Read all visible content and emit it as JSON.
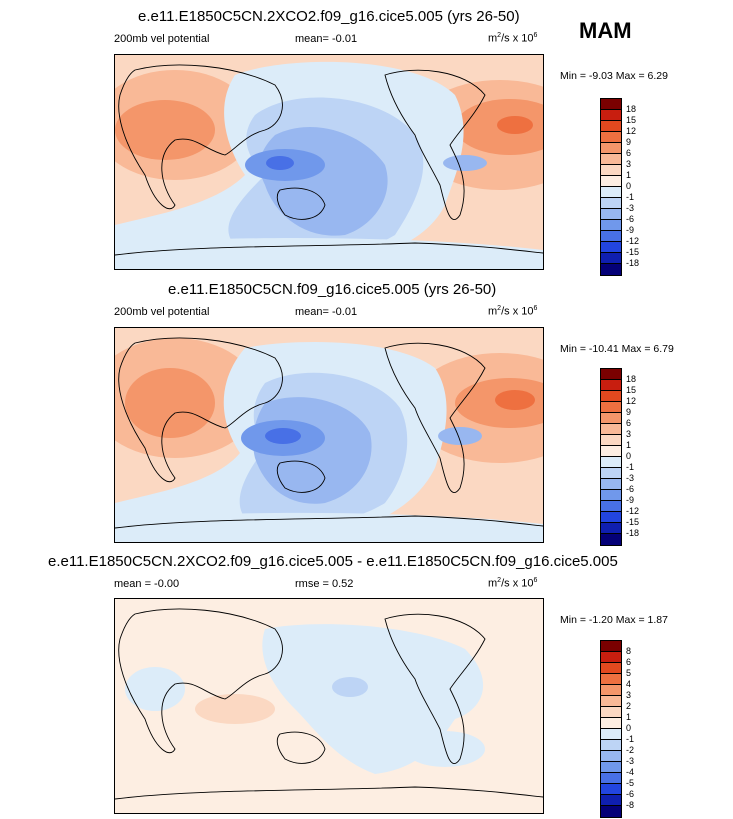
{
  "season": "MAM",
  "panels": [
    {
      "title": "e.e11.E1850C5CN.2XCO2.f09_g16.cice5.005 (yrs 26-50)",
      "field": "200mb vel potential",
      "mean_label": "mean=  -0.01",
      "units_base": "m",
      "units_sup": "2",
      "units_mid": "/s x 10",
      "units_exp": "6",
      "minmax": "Min =  -9.03 Max =  6.29",
      "colorbar": {
        "colors": [
          "#7a0000",
          "#c81e0f",
          "#e3491f",
          "#ee7040",
          "#f4966a",
          "#f9b997",
          "#fbd8c2",
          "#fdeee2",
          "#dcecf9",
          "#bdd4f5",
          "#98b7f0",
          "#7098eb",
          "#4870e6",
          "#2245e0",
          "#0f1fb0",
          "#040077"
        ],
        "labels": [
          "18",
          "15",
          "12",
          "9",
          "6",
          "3",
          "1",
          "0",
          "-1",
          "-3",
          "-6",
          "-9",
          "-12",
          "-15",
          "-18"
        ]
      }
    },
    {
      "title": "e.e11.E1850C5CN.f09_g16.cice5.005 (yrs 26-50)",
      "field": "200mb vel potential",
      "mean_label": "mean=  -0.01",
      "units_base": "m",
      "units_sup": "2",
      "units_mid": "/s x 10",
      "units_exp": "6",
      "minmax": "Min = -10.41 Max =  6.79",
      "colorbar": {
        "colors": [
          "#7a0000",
          "#c81e0f",
          "#e3491f",
          "#ee7040",
          "#f4966a",
          "#f9b997",
          "#fbd8c2",
          "#fdeee2",
          "#dcecf9",
          "#bdd4f5",
          "#98b7f0",
          "#7098eb",
          "#4870e6",
          "#2245e0",
          "#0f1fb0",
          "#040077"
        ],
        "labels": [
          "18",
          "15",
          "12",
          "9",
          "6",
          "3",
          "1",
          "0",
          "-1",
          "-3",
          "-6",
          "-9",
          "-12",
          "-15",
          "-18"
        ]
      }
    },
    {
      "title": "e.e11.E1850C5CN.2XCO2.f09_g16.cice5.005 - e.e11.E1850C5CN.f09_g16.cice5.005",
      "mean_label": "mean =  -0.00",
      "rmse_label": "rmse =   0.52",
      "units_base": "m",
      "units_sup": "2",
      "units_mid": "/s x 10",
      "units_exp": "6",
      "minmax": "Min =  -1.20 Max =   1.87",
      "colorbar": {
        "colors": [
          "#7a0000",
          "#c81e0f",
          "#e3491f",
          "#ee7040",
          "#f4966a",
          "#f9b997",
          "#fbd8c2",
          "#fdeee2",
          "#dcecf9",
          "#bdd4f5",
          "#98b7f0",
          "#7098eb",
          "#4870e6",
          "#2245e0",
          "#0f1fb0",
          "#040077"
        ],
        "labels": [
          "8",
          "6",
          "5",
          "4",
          "3",
          "2",
          "1",
          "0",
          "-1",
          "-2",
          "-3",
          "-4",
          "-5",
          "-6",
          "-8"
        ]
      }
    }
  ],
  "map_colors": {
    "pos1": "#fdeee2",
    "pos2": "#fbd8c2",
    "pos3": "#f9b997",
    "pos4": "#f4966a",
    "pos5": "#ee7040",
    "neg1": "#dcecf9",
    "neg2": "#bdd4f5",
    "neg3": "#98b7f0",
    "neg4": "#7098eb",
    "neg5": "#4870e6"
  }
}
